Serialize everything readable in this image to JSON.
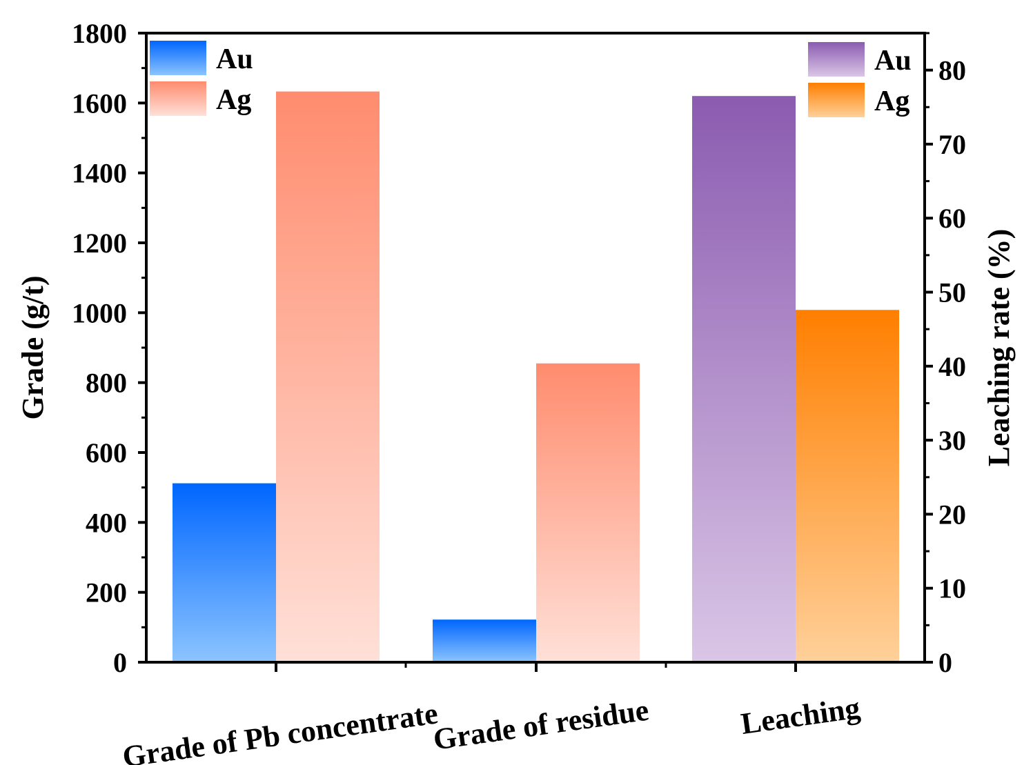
{
  "chart_data": {
    "type": "bar",
    "categories": [
      "Grade of Pb concentrate",
      "Grade of residue",
      "Leaching"
    ],
    "left_axis": {
      "label": "Grade (g/t)",
      "ylim": [
        0,
        1800
      ],
      "ticks": [
        "0",
        "200",
        "400",
        "600",
        "800",
        "1000",
        "1200",
        "1400",
        "1600",
        "1800"
      ]
    },
    "right_axis": {
      "label": "Leaching rate (%)",
      "ylim": [
        0,
        85
      ],
      "ticks": [
        "0",
        "10",
        "20",
        "30",
        "40",
        "50",
        "60",
        "70",
        "80"
      ]
    },
    "series": [
      {
        "name": "Au",
        "axis": "left",
        "values": [
          512,
          122,
          null
        ],
        "color_top": "#0066ff",
        "color_bottom": "#8cc4ff"
      },
      {
        "name": "Ag",
        "axis": "left",
        "values": [
          1633,
          855,
          null
        ],
        "color_top": "#ff8c6e",
        "color_bottom": "#ffe0d8"
      },
      {
        "name": "Au",
        "axis": "right",
        "values": [
          null,
          null,
          76.5
        ],
        "color_top": "#8b5bb0",
        "color_bottom": "#dac6e6"
      },
      {
        "name": "Ag",
        "axis": "right",
        "values": [
          null,
          null,
          47.6
        ],
        "color_top": "#ff7f00",
        "color_bottom": "#ffd09a"
      }
    ],
    "legend_left": {
      "position": "top-left",
      "entries": [
        "Au",
        "Ag"
      ]
    },
    "legend_right": {
      "position": "top-right",
      "entries": [
        "Au",
        "Ag"
      ]
    }
  }
}
